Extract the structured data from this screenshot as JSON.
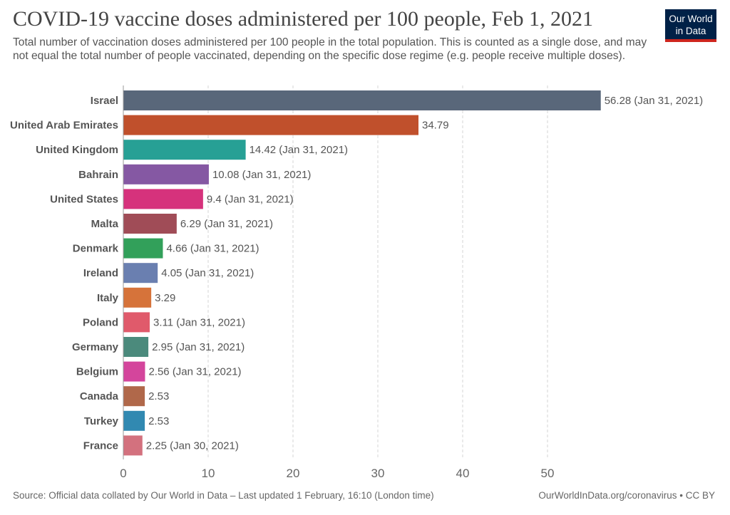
{
  "header": {
    "title": "COVID-19 vaccine doses administered per 100 people, Feb 1, 2021",
    "subtitle": "Total number of vaccination doses administered per 100 people in the total population. This is counted as a single dose, and may not equal the total number of people vaccinated, depending on the specific dose regime (e.g. people receive multiple doses).",
    "logo_line1": "Our World",
    "logo_line2": "in Data"
  },
  "footer": {
    "source": "Source: Official data collated by Our World in Data – Last updated 1 February, 16:10 (London time)",
    "credit": "OurWorldInData.org/coronavirus • CC BY"
  },
  "colors": {
    "logo_bg": "#002147",
    "logo_accent": "#ce261e"
  },
  "chart_data": {
    "type": "bar",
    "orientation": "horizontal",
    "title": "COVID-19 vaccine doses administered per 100 people, Feb 1, 2021",
    "xlim": [
      0,
      57
    ],
    "xticks": [
      0,
      10,
      20,
      30,
      40,
      50
    ],
    "grid": true,
    "categories": [
      "Israel",
      "United Arab Emirates",
      "United Kingdom",
      "Bahrain",
      "United States",
      "Malta",
      "Denmark",
      "Ireland",
      "Italy",
      "Poland",
      "Germany",
      "Belgium",
      "Canada",
      "Turkey",
      "France"
    ],
    "values": [
      56.28,
      34.79,
      14.42,
      10.08,
      9.4,
      6.29,
      4.66,
      4.05,
      3.29,
      3.11,
      2.95,
      2.56,
      2.53,
      2.53,
      2.25
    ],
    "value_labels": [
      "56.28 (Jan 31, 2021)",
      "34.79",
      "14.42 (Jan 31, 2021)",
      "10.08 (Jan 31, 2021)",
      "9.4 (Jan 31, 2021)",
      "6.29 (Jan 31, 2021)",
      "4.66 (Jan 31, 2021)",
      "4.05 (Jan 31, 2021)",
      "3.29",
      "3.11 (Jan 31, 2021)",
      "2.95 (Jan 31, 2021)",
      "2.56 (Jan 31, 2021)",
      "2.53",
      "2.53",
      "2.25 (Jan 30, 2021)"
    ],
    "colors": [
      "#59677a",
      "#c0502c",
      "#27a095",
      "#8558a3",
      "#d6327c",
      "#a04c57",
      "#32a05a",
      "#6a7fb0",
      "#d6733a",
      "#e05a6b",
      "#4b8a7c",
      "#d4459c",
      "#b0684a",
      "#3189b1",
      "#d3717e"
    ]
  }
}
